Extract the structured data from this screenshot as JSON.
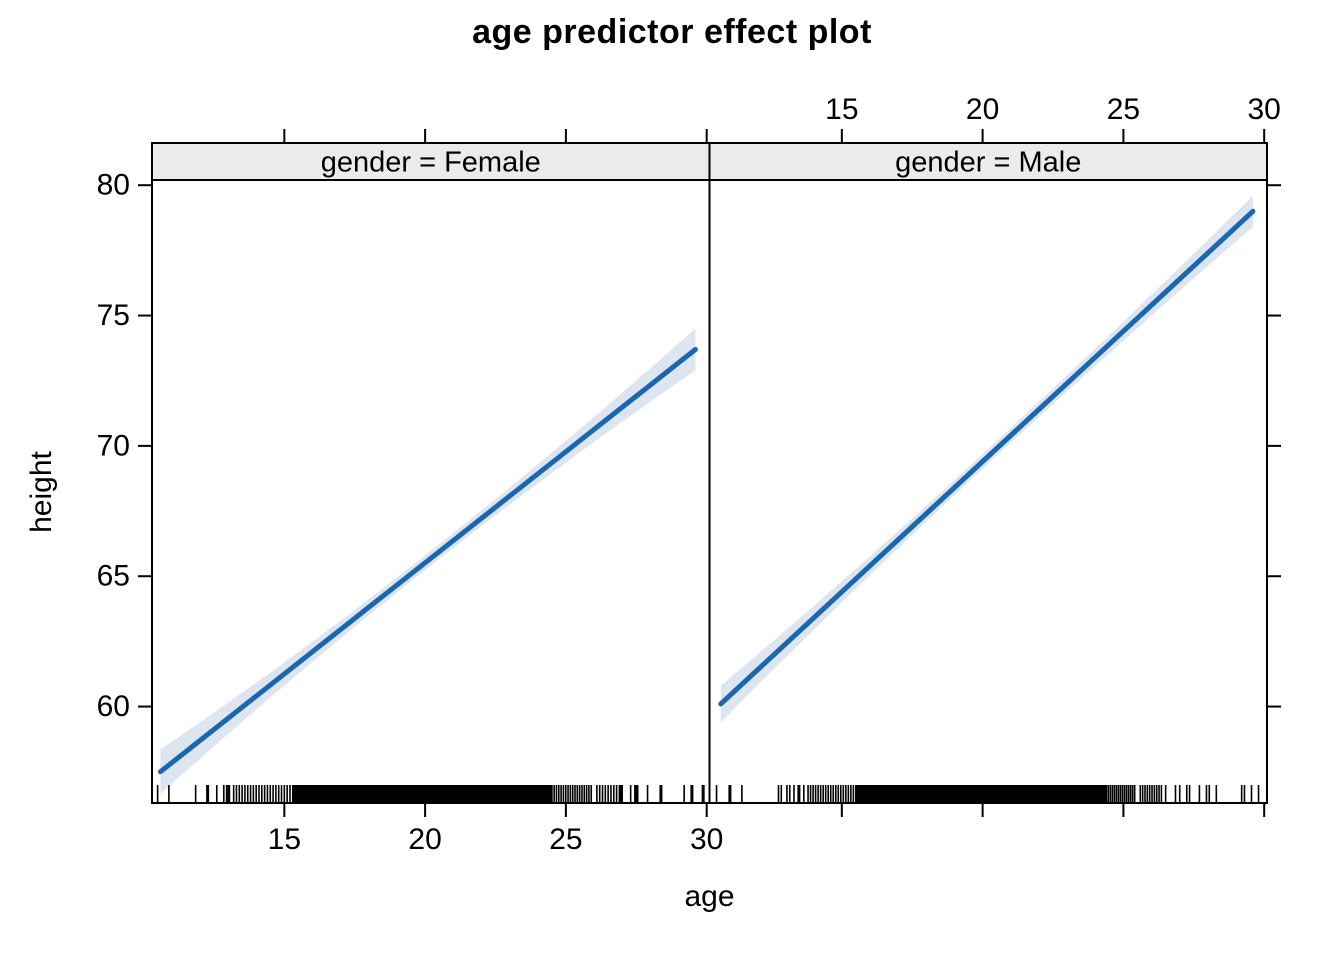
{
  "title": "age predictor effect plot",
  "chart_data": {
    "type": "line",
    "title": "age predictor effect plot",
    "xlabel": "age",
    "ylabel": "height",
    "x_ticks": [
      15,
      20,
      25,
      30
    ],
    "y_ticks": [
      60,
      65,
      70,
      75,
      80
    ],
    "x_range": [
      10.3,
      30.1
    ],
    "y_range": [
      56.3,
      80.2
    ],
    "grid": false,
    "legend": "none",
    "colors": {
      "fit_line": "#1a66b0",
      "confidence_band": "#dce5f0",
      "strip_background": "#ebebeb",
      "axis": "#000000",
      "rug": "#000000",
      "background": "#ffffff"
    },
    "panels": [
      {
        "strip_label": "gender = Female",
        "fit": {
          "x_start": 10.6,
          "y_start": 57.5,
          "x_end": 29.6,
          "y_end": 73.7
        },
        "band_halfwidth": {
          "start": 0.85,
          "mid": 0.28,
          "end": 0.8
        },
        "rug_sparse": [
          10.5,
          10.9,
          11.85,
          12.25,
          12.3,
          12.6,
          12.85,
          12.95,
          13.0,
          13.05,
          26.95,
          27.0,
          27.3,
          27.45,
          27.5,
          27.55,
          27.9,
          28.35,
          28.4,
          29.2,
          29.45,
          29.5,
          29.85,
          29.9
        ],
        "rug_dense": [
          {
            "from": 13.2,
            "to": 15.3,
            "count": 22
          },
          {
            "from": 15.3,
            "to": 24.5,
            "count": 240
          },
          {
            "from": 24.5,
            "to": 25.9,
            "count": 18
          },
          {
            "from": 26.1,
            "to": 26.9,
            "count": 9
          }
        ]
      },
      {
        "strip_label": "gender = Male",
        "fit": {
          "x_start": 10.7,
          "y_start": 60.1,
          "x_end": 29.6,
          "y_end": 79.0
        },
        "band_halfwidth": {
          "start": 0.7,
          "mid": 0.28,
          "end": 0.6
        },
        "rug_sparse": [
          10.55,
          11.0,
          11.05,
          11.45,
          12.75,
          12.85,
          13.05,
          13.15,
          13.3,
          13.45,
          13.5,
          13.65,
          26.5,
          26.85,
          27.0,
          27.25,
          27.35,
          27.7,
          27.95,
          28.05,
          28.3,
          29.2,
          29.3,
          29.55,
          29.8
        ],
        "rug_dense": [
          {
            "from": 13.8,
            "to": 15.5,
            "count": 20
          },
          {
            "from": 15.5,
            "to": 24.4,
            "count": 240
          },
          {
            "from": 24.4,
            "to": 25.4,
            "count": 15
          },
          {
            "from": 25.6,
            "to": 26.35,
            "count": 10
          }
        ]
      }
    ]
  }
}
